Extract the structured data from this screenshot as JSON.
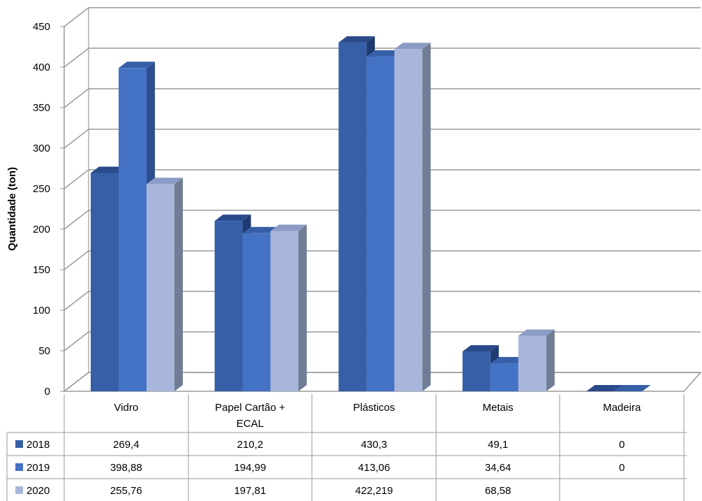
{
  "chart_data": {
    "type": "bar",
    "ylabel": "Quantidade (ton)",
    "ylim": [
      0,
      450
    ],
    "yticks": [
      "0",
      "50",
      "100",
      "150",
      "200",
      "250",
      "300",
      "350",
      "400",
      "450"
    ],
    "categories": [
      [
        "Vidro"
      ],
      [
        "Papel Cartão +",
        "ECAL"
      ],
      [
        "Plásticos"
      ],
      [
        "Metais"
      ],
      [
        "Madeira"
      ]
    ],
    "series": [
      {
        "name": "2018",
        "values": [
          269.4,
          210.2,
          430.3,
          49.1,
          0
        ],
        "labels": [
          "269,4",
          "210,2",
          "430,3",
          "49,1",
          "0"
        ],
        "color": "#365fa8",
        "color_top": "#2a4a8a",
        "color_side": "#1f3a70"
      },
      {
        "name": "2019",
        "values": [
          398.88,
          194.99,
          413.06,
          34.64,
          0
        ],
        "labels": [
          "398,88",
          "194,99",
          "413,06",
          "34,64",
          "0"
        ],
        "color": "#4472c4",
        "color_top": "#365fa8",
        "color_side": "#2e4f8f"
      },
      {
        "name": "2020",
        "values": [
          255.76,
          197.81,
          422.219,
          68.58,
          null
        ],
        "labels": [
          "255,76",
          "197,81",
          "422,219",
          "68,58",
          ""
        ],
        "color": "#a9b6db",
        "color_top": "#8c9bc4",
        "color_side": "#6f7d96"
      }
    ],
    "grid": true,
    "legend": "data-table"
  }
}
